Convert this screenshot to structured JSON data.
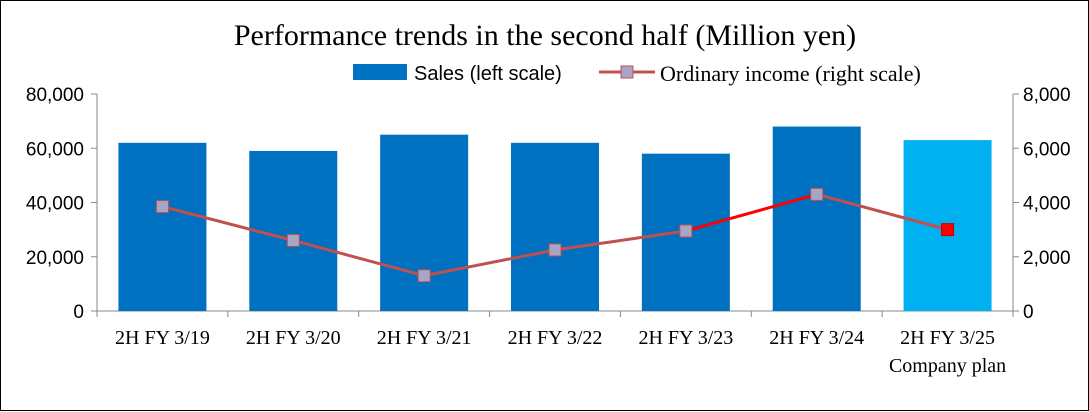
{
  "chart_data": {
    "type": "bar",
    "title": "Performance trends in the second half (Million yen)",
    "categories": [
      "2H FY 3/19",
      "2H FY 3/20",
      "2H FY 3/21",
      "2H FY 3/22",
      "2H FY 3/23",
      "2H FY 3/24",
      "2H FY 3/25"
    ],
    "category_sublabels": [
      "",
      "",
      "",
      "",
      "",
      "",
      "Company plan"
    ],
    "series": [
      {
        "name": "Sales (left scale)",
        "type": "bar",
        "axis": "left",
        "values": [
          62000,
          59000,
          65000,
          62000,
          58000,
          68000,
          63000
        ],
        "color": "#0070C0",
        "highlight_color": "#00B0F0",
        "highlight_index": 6
      },
      {
        "name": "Ordinary income (right scale)",
        "type": "line",
        "axis": "right",
        "values": [
          3850,
          2600,
          1300,
          2250,
          2950,
          4300,
          3000
        ],
        "line_color": "#C0504D",
        "marker_color": "#A6A6C8",
        "highlight_color": "#FF0000",
        "highlight_index": 6
      }
    ],
    "y_left": {
      "ylim": [
        0,
        80000
      ],
      "ticks": [
        "0",
        "20,000",
        "40,000",
        "60,000",
        "80,000"
      ]
    },
    "y_right": {
      "ylim": [
        0,
        8000
      ],
      "ticks": [
        "0",
        "2,000",
        "4,000",
        "6,000",
        "8,000"
      ]
    },
    "legend_position": "top",
    "grid": false
  }
}
